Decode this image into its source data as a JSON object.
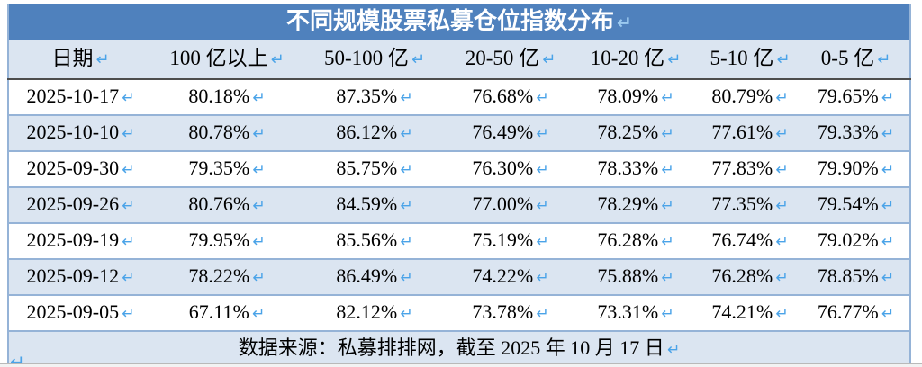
{
  "title": "不同规模股票私募仓位指数分布",
  "marks": {
    "pilcrow": "↵"
  },
  "table": {
    "columns": [
      "日期",
      "100 亿以上",
      "50-100 亿",
      "20-50 亿",
      "10-20 亿",
      "5-10 亿",
      "0-5 亿"
    ],
    "rows": [
      [
        "2025-10-17",
        "80.18%",
        "87.35%",
        "76.68%",
        "78.09%",
        "80.79%",
        "79.65%"
      ],
      [
        "2025-10-10",
        "80.78%",
        "86.12%",
        "76.49%",
        "78.25%",
        "77.61%",
        "79.33%"
      ],
      [
        "2025-09-30",
        "79.35%",
        "85.75%",
        "76.30%",
        "78.33%",
        "77.83%",
        "79.90%"
      ],
      [
        "2025-09-26",
        "80.76%",
        "84.59%",
        "77.00%",
        "78.29%",
        "77.35%",
        "79.54%"
      ],
      [
        "2025-09-19",
        "79.95%",
        "85.56%",
        "75.19%",
        "76.28%",
        "76.74%",
        "79.02%"
      ],
      [
        "2025-09-12",
        "78.22%",
        "86.49%",
        "74.22%",
        "75.88%",
        "76.28%",
        "78.85%"
      ],
      [
        "2025-09-05",
        "67.11%",
        "82.12%",
        "73.78%",
        "73.31%",
        "74.21%",
        "76.77%"
      ]
    ],
    "source_note": "数据来源：私募排排网，截至 2025 年 10 月 17 日"
  },
  "colors": {
    "title_bar_blue": "#4f81bd",
    "row_alt_blue": "#dbe5f1",
    "row_border_blue": "#95b3d7",
    "header_divider_gray": "#4d4d4d",
    "pilcrow_blue": "#4aa3e8"
  },
  "chart_data": {
    "type": "table",
    "title": "不同规模股票私募仓位指数分布",
    "categories": [
      "100 亿以上",
      "50-100 亿",
      "20-50 亿",
      "10-20 亿",
      "5-10 亿",
      "0-5 亿"
    ],
    "x": [
      "2025-10-17",
      "2025-10-10",
      "2025-09-30",
      "2025-09-26",
      "2025-09-19",
      "2025-09-12",
      "2025-09-05"
    ],
    "series": [
      {
        "name": "100 亿以上",
        "values": [
          80.18,
          80.78,
          79.35,
          80.76,
          79.95,
          78.22,
          67.11
        ]
      },
      {
        "name": "50-100 亿",
        "values": [
          87.35,
          86.12,
          85.75,
          84.59,
          85.56,
          86.49,
          82.12
        ]
      },
      {
        "name": "20-50 亿",
        "values": [
          76.68,
          76.49,
          76.3,
          77.0,
          75.19,
          74.22,
          73.78
        ]
      },
      {
        "name": "10-20 亿",
        "values": [
          78.09,
          78.25,
          78.33,
          78.29,
          76.28,
          75.88,
          73.31
        ]
      },
      {
        "name": "5-10 亿",
        "values": [
          80.79,
          77.61,
          77.83,
          77.35,
          76.74,
          76.28,
          74.21
        ]
      },
      {
        "name": "0-5 亿",
        "values": [
          79.65,
          79.33,
          79.9,
          79.54,
          79.02,
          78.85,
          76.77
        ]
      }
    ],
    "unit": "%",
    "source": "数据来源：私募排排网，截至 2025 年 10 月 17 日"
  }
}
